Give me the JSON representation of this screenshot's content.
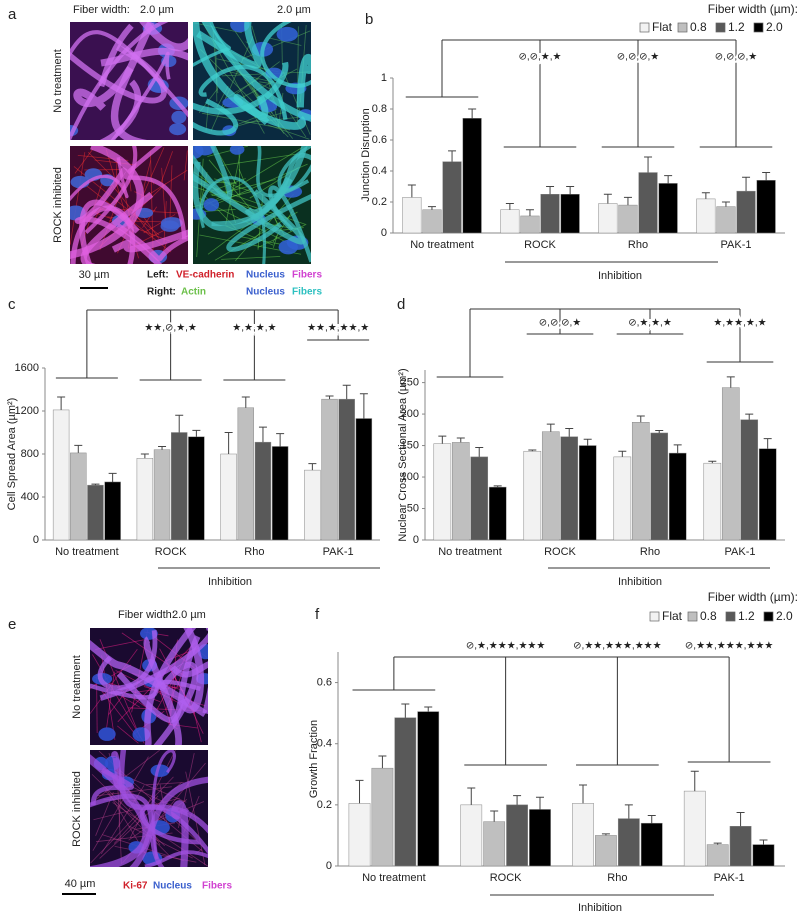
{
  "panel_letters": [
    "a",
    "b",
    "c",
    "d",
    "e",
    "f"
  ],
  "panel_a": {
    "fiber_width_label": "Fiber width:",
    "column_labels": [
      "2.0 µm",
      "2.0 µm"
    ],
    "row_labels": [
      "No treatment",
      "ROCK inhibited"
    ],
    "scale_bar": "30 µm",
    "legend": [
      {
        "side": "Left:",
        "items": [
          "VE-cadherin",
          "Nucleus",
          "Fibers"
        ]
      },
      {
        "side": "Right:",
        "items": [
          "Actin",
          "Nucleus",
          "Fibers"
        ]
      }
    ]
  },
  "panel_e": {
    "fiber_width_label": "Fiber width:",
    "column_label": "2.0 µm",
    "row_labels": [
      "No treatment",
      "ROCK inhibited"
    ],
    "scale_bar": "40 µm",
    "legend": [
      "Ki-67",
      "Nucleus",
      "Fibers"
    ]
  },
  "chart_data": [
    {
      "type": "bar",
      "ylabel": "Junction Disruption",
      "legend_title": "Fiber width (µm):",
      "categories": [
        "No treatment",
        "ROCK",
        "Rho",
        "PAK-1"
      ],
      "group_label": "Inhibition",
      "annotations": [
        "⊘,⊘,★,★",
        "⊘,⊘,⊘,★",
        "⊘,⊘,⊘,★"
      ],
      "ylim": [
        0,
        1
      ],
      "yticks": [
        0,
        0.2,
        0.4,
        0.6,
        0.8,
        1
      ],
      "series": [
        {
          "name": "Flat",
          "color": "#f2f2f2",
          "values": [
            0.23,
            0.15,
            0.19,
            0.22
          ],
          "errors": [
            0.08,
            0.04,
            0.06,
            0.04
          ]
        },
        {
          "name": "0.8",
          "color": "#bfbfbf",
          "values": [
            0.15,
            0.11,
            0.18,
            0.17
          ],
          "errors": [
            0.02,
            0.04,
            0.05,
            0.03
          ]
        },
        {
          "name": "1.2",
          "color": "#595959",
          "values": [
            0.46,
            0.25,
            0.39,
            0.27
          ],
          "errors": [
            0.07,
            0.05,
            0.1,
            0.09
          ]
        },
        {
          "name": "2.0",
          "color": "#000000",
          "values": [
            0.74,
            0.25,
            0.32,
            0.34
          ],
          "errors": [
            0.06,
            0.05,
            0.05,
            0.05
          ]
        }
      ]
    },
    {
      "type": "bar",
      "ylabel": "Cell Spread Area (µm²)",
      "categories": [
        "No treatment",
        "ROCK",
        "Rho",
        "PAK-1"
      ],
      "group_label": "Inhibition",
      "annotations": [
        "★★,⊘,★,★",
        "★,★,★,★",
        "★★,★,★★,★"
      ],
      "ylim": [
        0,
        1600
      ],
      "yticks": [
        0,
        400,
        800,
        1200,
        1600
      ],
      "series": [
        {
          "color": "#f2f2f2",
          "values": [
            1210,
            760,
            800,
            650
          ],
          "errors": [
            120,
            40,
            200,
            60
          ]
        },
        {
          "color": "#bfbfbf",
          "values": [
            810,
            840,
            1230,
            1310
          ],
          "errors": [
            70,
            30,
            100,
            30
          ]
        },
        {
          "color": "#595959",
          "values": [
            510,
            1000,
            910,
            1310
          ],
          "errors": [
            10,
            160,
            140,
            130
          ]
        },
        {
          "color": "#000000",
          "values": [
            540,
            960,
            870,
            1130
          ],
          "errors": [
            80,
            60,
            120,
            230
          ]
        }
      ]
    },
    {
      "type": "bar",
      "ylabel": "Nuclear Cross Sectional Area (µm²)",
      "categories": [
        "No treatment",
        "ROCK",
        "Rho",
        "PAK-1"
      ],
      "group_label": "Inhibition",
      "annotations": [
        "⊘,⊘,⊘,★",
        "⊘,★,★,★",
        "★,★★,★,★"
      ],
      "ylim": [
        0,
        270
      ],
      "yticks": [
        0,
        50,
        100,
        150,
        200,
        250
      ],
      "series": [
        {
          "color": "#f2f2f2",
          "values": [
            153,
            141,
            132,
            122
          ],
          "errors": [
            12,
            2,
            9,
            3
          ]
        },
        {
          "color": "#bfbfbf",
          "values": [
            155,
            172,
            187,
            242
          ],
          "errors": [
            7,
            12,
            10,
            17
          ]
        },
        {
          "color": "#595959",
          "values": [
            132,
            164,
            170,
            191
          ],
          "errors": [
            15,
            13,
            4,
            9
          ]
        },
        {
          "color": "#000000",
          "values": [
            84,
            150,
            138,
            145
          ],
          "errors": [
            2,
            10,
            13,
            16
          ]
        }
      ]
    },
    {
      "type": "bar",
      "ylabel": "Growth Fraction",
      "legend_title": "Fiber width (µm):",
      "categories": [
        "No treatment",
        "ROCK",
        "Rho",
        "PAK-1"
      ],
      "group_label": "Inhibition",
      "annotations": [
        "⊘,★,★★★,★★★",
        "⊘,★★,★★★,★★★",
        "⊘,★★,★★★,★★★"
      ],
      "ylim": [
        0,
        0.7
      ],
      "yticks": [
        0,
        0.2,
        0.4,
        0.6
      ],
      "series": [
        {
          "name": "Flat",
          "color": "#f2f2f2",
          "values": [
            0.205,
            0.2,
            0.205,
            0.245
          ],
          "errors": [
            0.075,
            0.055,
            0.06,
            0.065
          ]
        },
        {
          "name": "0.8",
          "color": "#bfbfbf",
          "values": [
            0.32,
            0.145,
            0.1,
            0.07
          ],
          "errors": [
            0.04,
            0.035,
            0.005,
            0.005
          ]
        },
        {
          "name": "1.2",
          "color": "#595959",
          "values": [
            0.485,
            0.2,
            0.155,
            0.13
          ],
          "errors": [
            0.045,
            0.03,
            0.045,
            0.045
          ]
        },
        {
          "name": "2.0",
          "color": "#000000",
          "values": [
            0.505,
            0.185,
            0.14,
            0.07
          ],
          "errors": [
            0.015,
            0.04,
            0.025,
            0.015
          ]
        }
      ]
    }
  ]
}
